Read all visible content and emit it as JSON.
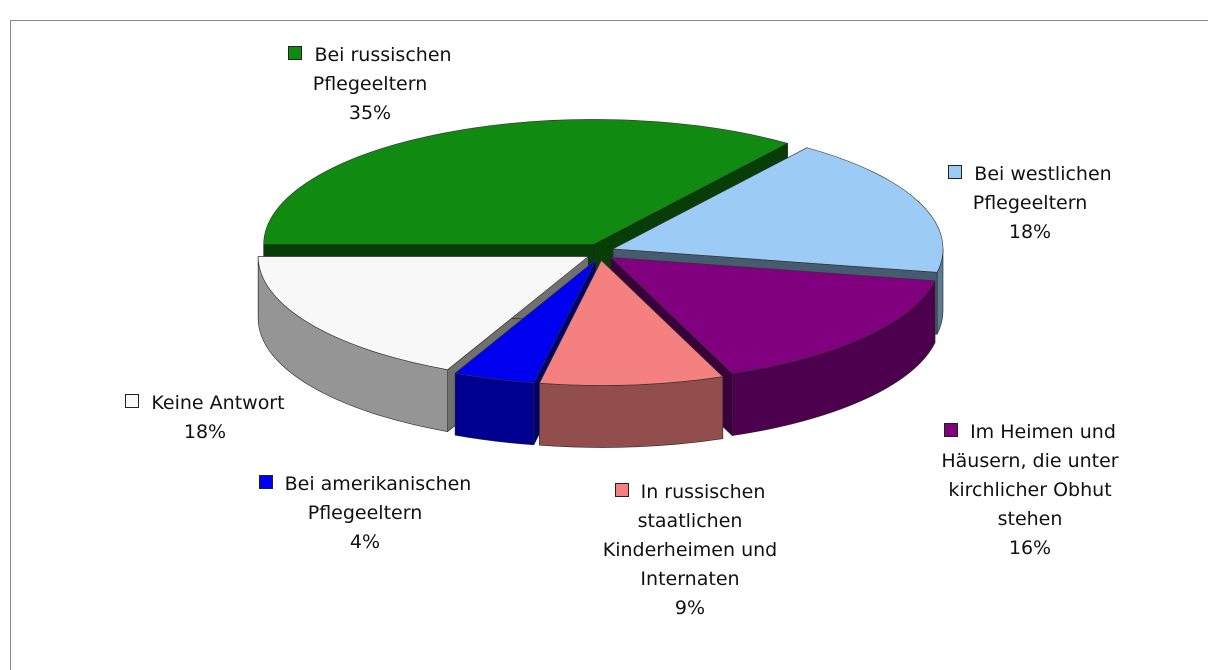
{
  "chart_data": {
    "type": "pie",
    "categories": [
      "Bei russischen Pflegeeltern",
      "Bei westlichen Pflegeeltern",
      "Im Heimen und Häusern, die unter kirchlicher Obhut stehen",
      "In russischen staatlichen Kinderheimen und Internaten",
      "Bei amerikanischen Pflegeeltern",
      "Keine Antwort"
    ],
    "values": [
      35,
      18,
      16,
      9,
      4,
      18
    ],
    "value_labels": [
      "35%",
      "18%",
      "16%",
      "9%",
      "4%",
      "18%"
    ],
    "colors": [
      "#118a11",
      "#9ccbf6",
      "#800080",
      "#f48080",
      "#0000f0",
      "#f8f8f8"
    ],
    "legend": true
  }
}
